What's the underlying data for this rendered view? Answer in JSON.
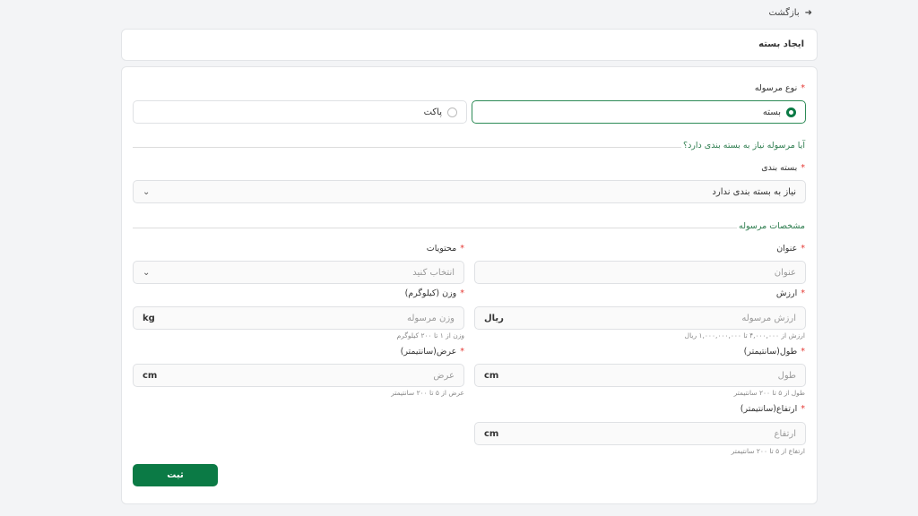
{
  "back": {
    "label": "بازگشت",
    "icon": "arrow-right-icon"
  },
  "header": {
    "title": "ایجاد بسته"
  },
  "form": {
    "type": {
      "label": "نوع مرسوله",
      "options": [
        {
          "label": "بسته",
          "selected": true
        },
        {
          "label": "پاکت",
          "selected": false
        }
      ]
    },
    "packaging_section": "آیا مرسوله نیاز به بسته بندی دارد؟",
    "packaging": {
      "label": "بسته بندی",
      "value": "نیاز به بسته بندی ندارد"
    },
    "specs_section": "مشخصات مرسوله",
    "title": {
      "label": "عنوان",
      "placeholder": "عنوان"
    },
    "contents": {
      "label": "محتویات",
      "placeholder": "انتخاب کنید"
    },
    "value": {
      "label": "ارزش",
      "placeholder": "ارزش مرسوله",
      "unit": "ریال",
      "hint": "ارزش از ۴,۰۰۰,۰۰۰ تا ۱,۰۰۰,۰۰۰,۰۰۰ ریال"
    },
    "weight": {
      "label": "وزن (کیلوگرم)",
      "placeholder": "وزن مرسوله",
      "unit": "kg",
      "hint": "وزن از ۱ تا ۲۰۰ کیلوگرم"
    },
    "length": {
      "label": "طول(سانتیمتر)",
      "placeholder": "طول",
      "unit": "cm",
      "hint": "طول از ۵ تا ۲۰۰ سانتیمتر"
    },
    "width": {
      "label": "عرض(سانتیمتر)",
      "placeholder": "عرض",
      "unit": "cm",
      "hint": "عرض از ۵ تا ۲۰۰ سانتیمتر"
    },
    "height": {
      "label": "ارتفاع(سانتیمتر)",
      "placeholder": "ارتفاع",
      "unit": "cm",
      "hint": "ارتفاع از ۵ تا ۲۰۰ سانتیمتر"
    },
    "required_mark": "*",
    "submit": "ثبت"
  },
  "colors": {
    "accent": "#0b7a45",
    "required": "#e53935"
  }
}
